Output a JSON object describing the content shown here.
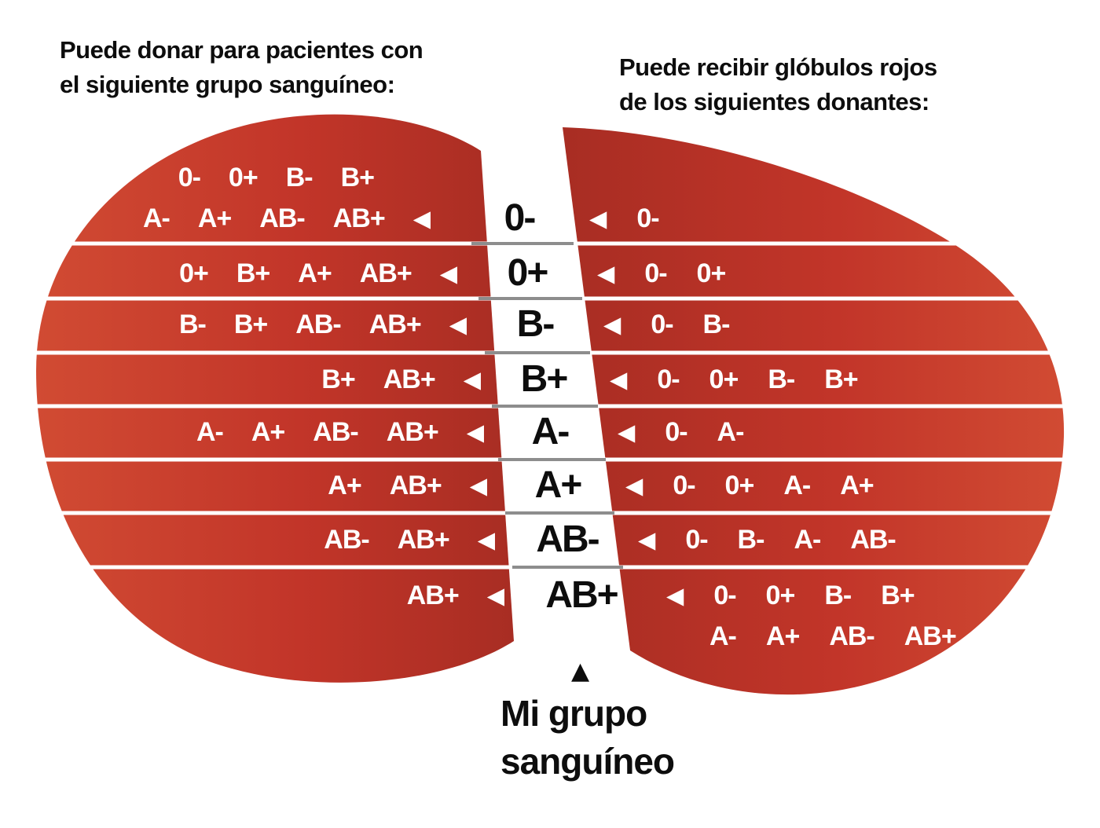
{
  "titles": {
    "donate_line1": "Puede donar para pacientes con",
    "donate_line2": "el siguiente grupo sanguíneo:",
    "receive_line1": "Puede recibir glóbulos rojos",
    "receive_line2": "de los siguientes donantes:"
  },
  "footer": {
    "line1": "Mi grupo",
    "line2": "sanguíneo"
  },
  "icons": {
    "left_arrow": "◀",
    "up_arrow": "▲"
  },
  "rows": [
    {
      "type": "0-",
      "donate_to": [
        "0-",
        "0+",
        "B-",
        "B+",
        "A-",
        "A+",
        "AB-",
        "AB+"
      ],
      "receive_from": [
        "0-"
      ]
    },
    {
      "type": "0+",
      "donate_to": [
        "0+",
        "B+",
        "A+",
        "AB+"
      ],
      "receive_from": [
        "0-",
        "0+"
      ]
    },
    {
      "type": "B-",
      "donate_to": [
        "B-",
        "B+",
        "AB-",
        "AB+"
      ],
      "receive_from": [
        "0-",
        "B-"
      ]
    },
    {
      "type": "B+",
      "donate_to": [
        "B+",
        "AB+"
      ],
      "receive_from": [
        "0-",
        "0+",
        "B-",
        "B+"
      ]
    },
    {
      "type": "A-",
      "donate_to": [
        "A-",
        "A+",
        "AB-",
        "AB+"
      ],
      "receive_from": [
        "0-",
        "A-"
      ]
    },
    {
      "type": "A+",
      "donate_to": [
        "A+",
        "AB+"
      ],
      "receive_from": [
        "0-",
        "0+",
        "A-",
        "A+"
      ]
    },
    {
      "type": "AB-",
      "donate_to": [
        "AB-",
        "AB+"
      ],
      "receive_from": [
        "0-",
        "B-",
        "A-",
        "AB-"
      ]
    },
    {
      "type": "AB+",
      "donate_to": [
        "AB+"
      ],
      "receive_from": [
        "0-",
        "0+",
        "B-",
        "B+",
        "A-",
        "A+",
        "AB-",
        "AB+"
      ]
    }
  ],
  "colors": {
    "background": "#ffffff",
    "drop_red_light": "#d14b33",
    "drop_red_mid": "#c23529",
    "drop_red_dark": "#a82d23",
    "type_text_black": "#0d0d0d",
    "list_text_white": "#ffffff",
    "separator_gray": "#8d8d8d"
  }
}
